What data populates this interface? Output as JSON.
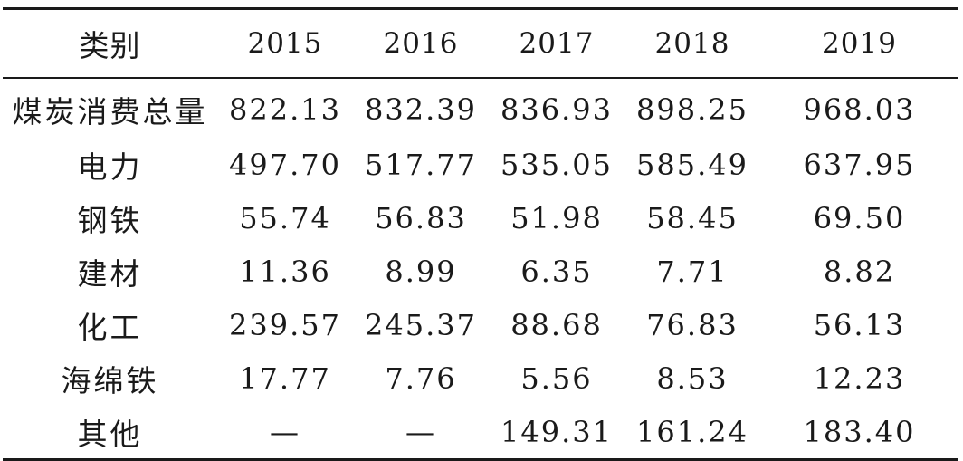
{
  "table": {
    "header": {
      "category": "类别",
      "years": [
        "2015",
        "2016",
        "2017",
        "2018",
        "2019"
      ]
    },
    "rows": [
      {
        "label": "煤炭消费总量",
        "values": [
          "822.13",
          "832.39",
          "836.93",
          "898.25",
          "968.03"
        ]
      },
      {
        "label": "电力",
        "values": [
          "497.70",
          "517.77",
          "535.05",
          "585.49",
          "637.95"
        ]
      },
      {
        "label": "钢铁",
        "values": [
          "55.74",
          "56.83",
          "51.98",
          "58.45",
          "69.50"
        ]
      },
      {
        "label": "建材",
        "values": [
          "11.36",
          "8.99",
          "6.35",
          "7.71",
          "8.82"
        ]
      },
      {
        "label": "化工",
        "values": [
          "239.57",
          "245.37",
          "88.68",
          "76.83",
          "56.13"
        ]
      },
      {
        "label": "海绵铁",
        "values": [
          "17.77",
          "7.76",
          "5.56",
          "8.53",
          "12.23"
        ]
      },
      {
        "label": "其他",
        "values": [
          "—",
          "—",
          "149.31",
          "161.24",
          "183.40"
        ]
      }
    ]
  }
}
